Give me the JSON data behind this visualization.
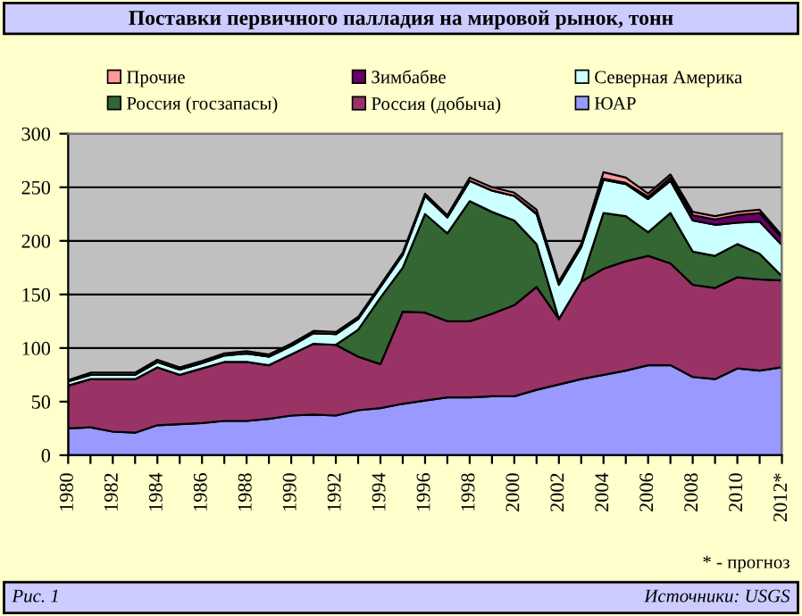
{
  "chart_data": {
    "type": "area",
    "stacked": true,
    "title": "Поставки первичного палладия на мировой рынок, тонн",
    "categories": [
      "1980",
      null,
      "1982",
      null,
      "1984",
      null,
      "1986",
      null,
      "1988",
      null,
      "1990",
      null,
      "1992",
      null,
      "1994",
      null,
      "1996",
      null,
      "1998",
      null,
      "2000",
      null,
      "2002",
      null,
      "2004",
      null,
      "2006",
      null,
      "2008",
      null,
      "2010",
      null,
      "2012*"
    ],
    "series": [
      {
        "name": "ЮАР",
        "color": "#9999ff",
        "values": [
          25,
          26,
          22,
          21,
          28,
          29,
          30,
          32,
          32,
          34,
          37,
          38,
          37,
          42,
          44,
          48,
          51,
          54,
          54,
          55,
          55,
          61,
          66,
          71,
          75,
          79,
          84,
          84,
          73,
          71,
          81,
          79,
          82
        ]
      },
      {
        "name": "Россия (добыча)",
        "color": "#993366",
        "values": [
          40,
          45,
          49,
          50,
          54,
          46,
          51,
          55,
          55,
          50,
          57,
          66,
          66,
          50,
          41,
          86,
          82,
          71,
          71,
          77,
          85,
          96,
          61,
          91,
          99,
          102,
          102,
          95,
          86,
          85,
          85,
          85,
          81
        ]
      },
      {
        "name": "Россия (госзапасы)",
        "color": "#336633",
        "values": [
          0,
          0,
          0,
          0,
          0,
          0,
          0,
          0,
          0,
          0,
          0,
          0,
          0,
          25,
          62,
          41,
          92,
          82,
          112,
          95,
          79,
          40,
          0,
          0,
          52,
          42,
          22,
          47,
          31,
          30,
          31,
          24,
          4
        ]
      },
      {
        "name": "Северная Америка",
        "color": "#ccffff",
        "values": [
          4,
          4,
          4,
          4,
          5,
          5,
          5,
          6,
          8,
          8,
          8,
          10,
          10,
          10,
          10,
          12,
          17,
          15,
          19,
          20,
          23,
          28,
          32,
          32,
          31,
          30,
          31,
          30,
          29,
          29,
          20,
          30,
          29
        ]
      },
      {
        "name": "Зимбабве",
        "color": "#660066",
        "values": [
          0,
          0,
          0,
          0,
          0,
          0,
          0,
          0,
          0,
          0,
          0,
          0,
          0,
          0,
          0,
          0,
          0,
          0,
          0,
          0,
          0,
          1,
          1,
          1,
          1,
          1,
          2,
          3,
          5,
          5,
          7,
          8,
          7
        ]
      },
      {
        "name": "Прочие",
        "color": "#ff9999",
        "values": [
          1,
          2,
          2,
          2,
          2,
          2,
          2,
          2,
          2,
          2,
          2,
          2,
          2,
          2,
          2,
          2,
          2,
          2,
          3,
          3,
          3,
          3,
          2,
          2,
          6,
          5,
          3,
          3,
          3,
          3,
          3,
          3,
          2
        ]
      }
    ],
    "ylim": [
      0,
      300
    ],
    "yticks": [
      0,
      50,
      100,
      150,
      200,
      250,
      300
    ],
    "grid": "y",
    "legend": "top",
    "annotations": [
      "* - прогноз",
      "Рис. 1",
      "Источники: USGS"
    ]
  }
}
